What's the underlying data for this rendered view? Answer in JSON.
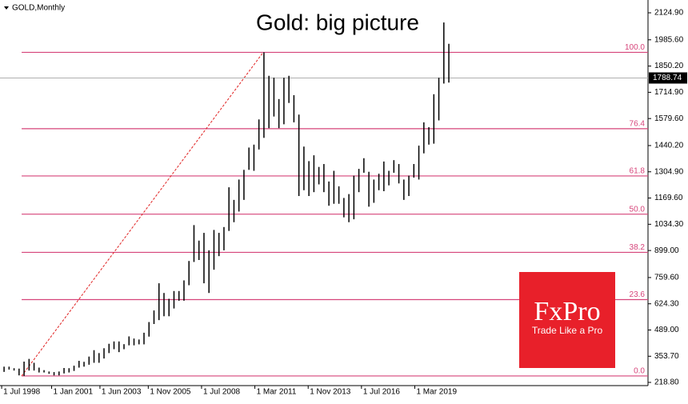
{
  "chart_data": {
    "type": "hlbar",
    "title": "Gold: big picture",
    "symbol": "GOLD,Monthly",
    "x": [
      "1998-07",
      "1998-10",
      "1999-01",
      "1999-04",
      "1999-07",
      "1999-10",
      "2000-01",
      "2000-04",
      "2000-07",
      "2000-10",
      "2001-01",
      "2001-04",
      "2001-07",
      "2001-10",
      "2002-01",
      "2002-04",
      "2002-07",
      "2002-10",
      "2003-01",
      "2003-04",
      "2003-07",
      "2003-10",
      "2004-01",
      "2004-04",
      "2004-07",
      "2004-10",
      "2005-01",
      "2005-04",
      "2005-07",
      "2005-10",
      "2006-01",
      "2006-04",
      "2006-07",
      "2006-10",
      "2007-01",
      "2007-04",
      "2007-07",
      "2007-10",
      "2008-01",
      "2008-04",
      "2008-07",
      "2008-10",
      "2009-01",
      "2009-04",
      "2009-07",
      "2009-10",
      "2010-01",
      "2010-04",
      "2010-07",
      "2010-10",
      "2011-01",
      "2011-04",
      "2011-07",
      "2011-10",
      "2012-01",
      "2012-04",
      "2012-07",
      "2012-10",
      "2013-01",
      "2013-04",
      "2013-07",
      "2013-10",
      "2014-01",
      "2014-04",
      "2014-07",
      "2014-10",
      "2015-01",
      "2015-04",
      "2015-07",
      "2015-10",
      "2016-01",
      "2016-04",
      "2016-07",
      "2016-10",
      "2017-01",
      "2017-04",
      "2017-07",
      "2017-10",
      "2018-01",
      "2018-04",
      "2018-07",
      "2018-10",
      "2019-01",
      "2019-04",
      "2019-07",
      "2019-10",
      "2020-01",
      "2020-04",
      "2020-07",
      "2020-10"
    ],
    "high": [
      300,
      300,
      292,
      290,
      326,
      340,
      320,
      295,
      282,
      275,
      272,
      275,
      293,
      292,
      305,
      330,
      325,
      352,
      385,
      370,
      395,
      418,
      430,
      430,
      416,
      456,
      445,
      440,
      475,
      530,
      590,
      730,
      680,
      650,
      690,
      690,
      745,
      845,
      1030,
      950,
      990,
      900,
      1005,
      990,
      1020,
      1225,
      1160,
      1265,
      1315,
      1430,
      1445,
      1575,
      1921,
      1800,
      1790,
      1680,
      1790,
      1800,
      1700,
      1600,
      1435,
      1360,
      1390,
      1330,
      1345,
      1255,
      1310,
      1230,
      1170,
      1190,
      1285,
      1320,
      1375,
      1305,
      1265,
      1295,
      1358,
      1310,
      1365,
      1345,
      1265,
      1285,
      1345,
      1440,
      1560,
      1535,
      1705,
      1790,
      2075,
      1965
    ],
    "low": [
      273,
      285,
      280,
      255,
      252,
      280,
      280,
      270,
      270,
      263,
      255,
      255,
      265,
      270,
      278,
      295,
      300,
      310,
      320,
      320,
      342,
      370,
      390,
      375,
      390,
      410,
      410,
      415,
      415,
      455,
      520,
      540,
      560,
      560,
      600,
      640,
      640,
      720,
      840,
      850,
      730,
      680,
      800,
      870,
      900,
      1000,
      1045,
      1100,
      1160,
      1315,
      1310,
      1420,
      1480,
      1530,
      1590,
      1530,
      1550,
      1660,
      1560,
      1180,
      1210,
      1180,
      1200,
      1240,
      1200,
      1130,
      1140,
      1140,
      1070,
      1045,
      1060,
      1200,
      1300,
      1125,
      1145,
      1210,
      1205,
      1235,
      1300,
      1245,
      1160,
      1180,
      1275,
      1265,
      1400,
      1445,
      1450,
      1570,
      1760,
      1765
    ],
    "color": "#000000",
    "current_price": 1788.74,
    "xlim": [
      "1998-06",
      "2030-11"
    ],
    "xticks": [
      {
        "value": "1998-07",
        "label": "1 Jul 1998"
      },
      {
        "value": "2001-01",
        "label": "1 Jan 2001"
      },
      {
        "value": "2003-06",
        "label": "1 Jun 2003"
      },
      {
        "value": "2005-11",
        "label": "1 Nov 2005"
      },
      {
        "value": "2008-07",
        "label": "1 Jul 2008"
      },
      {
        "value": "2011-03",
        "label": "1 Mar 2011"
      },
      {
        "value": "2013-11",
        "label": "1 Nov 2013"
      },
      {
        "value": "2016-07",
        "label": "1 Jul 2016"
      },
      {
        "value": "2019-03",
        "label": "1 Mar 2019"
      }
    ],
    "ylim": [
      218.8,
      2124.9
    ],
    "yticks": [
      {
        "value": 218.8,
        "label": "218.80"
      },
      {
        "value": 353.7,
        "label": "353.70"
      },
      {
        "value": 489,
        "label": "489.00"
      },
      {
        "value": 624.3,
        "label": "624.30"
      },
      {
        "value": 759.6,
        "label": "759.60"
      },
      {
        "value": 899,
        "label": "899.00"
      },
      {
        "value": 1034.3,
        "label": "1034.30"
      },
      {
        "value": 1169.6,
        "label": "1169.60"
      },
      {
        "value": 1304.9,
        "label": "1304.90"
      },
      {
        "value": 1440.2,
        "label": "1440.20"
      },
      {
        "value": 1579.6,
        "label": "1579.60"
      },
      {
        "value": 1714.9,
        "label": "1714.90"
      },
      {
        "value": 1850.2,
        "label": "1850.20"
      },
      {
        "value": 1985.6,
        "label": "1985.60"
      },
      {
        "value": 2124.9,
        "label": "2124.90"
      }
    ],
    "fibonacci": {
      "low": 252,
      "high": 1921,
      "from": "1999-07",
      "to": "2011-08",
      "color": "#d6447a",
      "levels": [
        {
          "value": 0,
          "label": "0.0"
        },
        {
          "value": 23.6,
          "label": "23.6"
        },
        {
          "value": 38.2,
          "label": "38.2"
        },
        {
          "value": 50,
          "label": "50.0"
        },
        {
          "value": 61.8,
          "label": "61.8"
        },
        {
          "value": 76.4,
          "label": "76.4"
        },
        {
          "value": 100,
          "label": "100.0"
        }
      ]
    }
  },
  "logo": {
    "brand": "FxPro",
    "tagline": "Trade Like a Pro"
  }
}
